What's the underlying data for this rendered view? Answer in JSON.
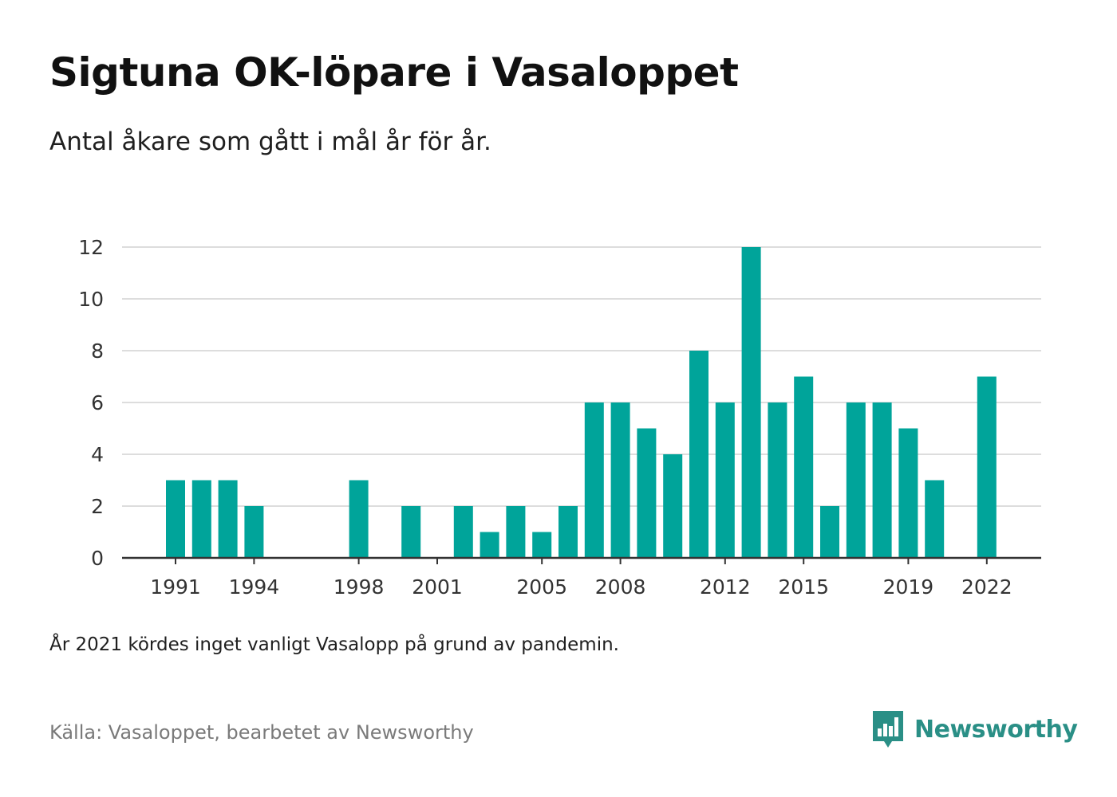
{
  "header": {
    "title": "Sigtuna OK-löpare i Vasaloppet",
    "subtitle": "Antal åkare som gått i mål år för år."
  },
  "footer": {
    "note": "År 2021 kördes inget vanligt Vasalopp på grund av pandemin.",
    "source": "Källa: Vasaloppet, bearbetet av Newsworthy",
    "brand": "Newsworthy",
    "brand_icon": "bar-chart-speech-icon"
  },
  "colors": {
    "bar": "#00a49a",
    "grid": "#dddddd",
    "axis": "#333333",
    "brand": "#2a8f86"
  },
  "chart_data": {
    "type": "bar",
    "categories": [
      1991,
      1992,
      1993,
      1994,
      1995,
      1996,
      1997,
      1998,
      1999,
      2000,
      2001,
      2002,
      2003,
      2004,
      2005,
      2006,
      2007,
      2008,
      2009,
      2010,
      2011,
      2012,
      2013,
      2014,
      2015,
      2016,
      2017,
      2018,
      2019,
      2020,
      2021,
      2022
    ],
    "values": [
      3,
      3,
      3,
      2,
      0,
      0,
      0,
      3,
      0,
      2,
      0,
      2,
      1,
      2,
      1,
      2,
      6,
      6,
      5,
      4,
      8,
      6,
      12,
      6,
      7,
      2,
      6,
      6,
      5,
      3,
      null,
      7
    ],
    "x_tick_labels": [
      "1991",
      "1994",
      "1998",
      "2001",
      "2005",
      "2008",
      "2012",
      "2015",
      "2019",
      "2022"
    ],
    "y_ticks": [
      0,
      2,
      4,
      6,
      8,
      10,
      12
    ],
    "ylim": [
      0,
      12
    ],
    "grid": true,
    "legend": "none"
  }
}
